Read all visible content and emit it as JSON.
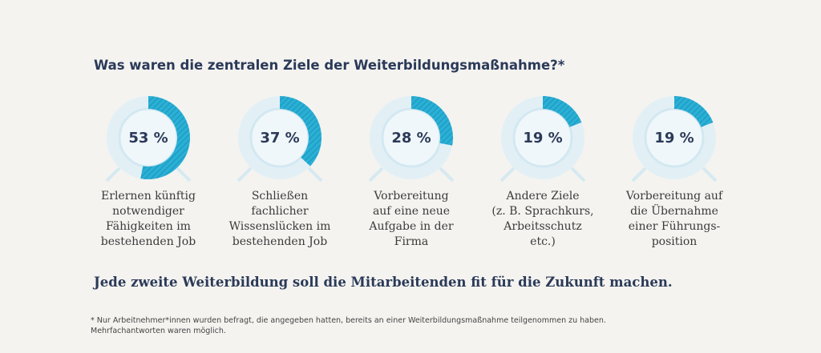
{
  "chart_data": {
    "type": "ring",
    "title": "Was waren die zentralen Ziele der Weiterbildungsmaßnahme?*",
    "categories": [
      "Erlernen künftig\nnotwendiger\nFähigkeiten im\nbestehenden Job",
      "Schließen\nfachlicher\nWissenslücken im\nbestehenden Job",
      "Vorbereitung\nauf eine neue\nAufgabe in der\nFirma",
      "Andere Ziele\n(z. B. Sprachkurs,\nArbeitsschutz\netc.)",
      "Vorbereitung auf\ndie Übernahme\neiner Führungs-\nposition"
    ],
    "values": [
      53,
      37,
      28,
      19,
      19
    ],
    "value_labels": [
      "53 %",
      "37 %",
      "28 %",
      "19 %",
      "19 %"
    ],
    "color": "#2bb0d6",
    "subtitle": "Jede zweite Weiterbildung soll die Mitarbeitenden fit für die Zukunft machen.",
    "footnote": "* Nur Arbeitnehmer*innen wurden befragt, die angegeben hatten, bereits an einer Weiterbildungsmaßnahme teilgenommen zu haben.\nMehrfachantworten waren möglich."
  }
}
